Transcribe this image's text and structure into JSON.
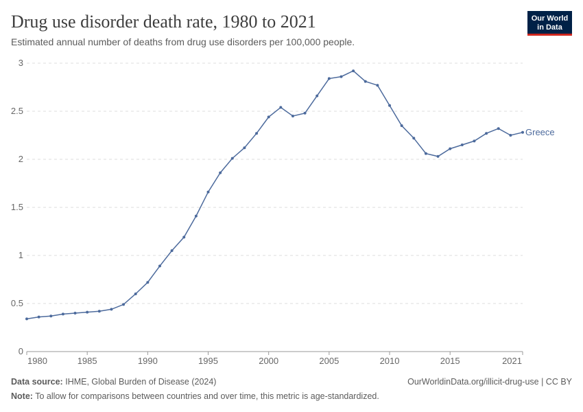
{
  "logo": [
    "Our World",
    "in Data"
  ],
  "chart_data": {
    "type": "line",
    "title": "Drug use disorder death rate, 1980 to 2021",
    "subtitle": "Estimated annual number of deaths from drug use disorders per 100,000 people.",
    "x": [
      1980,
      1981,
      1982,
      1983,
      1984,
      1985,
      1986,
      1987,
      1988,
      1989,
      1990,
      1991,
      1992,
      1993,
      1994,
      1995,
      1996,
      1997,
      1998,
      1999,
      2000,
      2001,
      2002,
      2003,
      2004,
      2005,
      2006,
      2007,
      2008,
      2009,
      2010,
      2011,
      2012,
      2013,
      2014,
      2015,
      2016,
      2017,
      2018,
      2019,
      2020,
      2021
    ],
    "series": [
      {
        "name": "Greece",
        "color": "#4c6a9c",
        "values": [
          0.34,
          0.36,
          0.37,
          0.39,
          0.4,
          0.41,
          0.42,
          0.44,
          0.49,
          0.6,
          0.72,
          0.89,
          1.05,
          1.19,
          1.41,
          1.66,
          1.86,
          2.01,
          2.12,
          2.27,
          2.44,
          2.54,
          2.45,
          2.48,
          2.66,
          2.84,
          2.86,
          2.92,
          2.81,
          2.77,
          2.56,
          2.35,
          2.22,
          2.06,
          2.03,
          2.11,
          2.15,
          2.19,
          2.27,
          2.32,
          2.25,
          2.28
        ]
      }
    ],
    "xlim": [
      1980,
      2021
    ],
    "xticks": [
      1980,
      1985,
      1990,
      1995,
      2000,
      2005,
      2010,
      2015,
      2021
    ],
    "ylim": [
      0,
      3
    ],
    "yticks": [
      0,
      0.5,
      1,
      1.5,
      2,
      2.5,
      3
    ],
    "grid": true,
    "source_label": "Data source:",
    "source": "IHME, Global Burden of Disease (2024)",
    "url": "OurWorldinData.org/illicit-drug-use | CC BY",
    "note_label": "Note:",
    "note": "To allow for comparisons between countries and over time, this metric is age-standardized."
  }
}
